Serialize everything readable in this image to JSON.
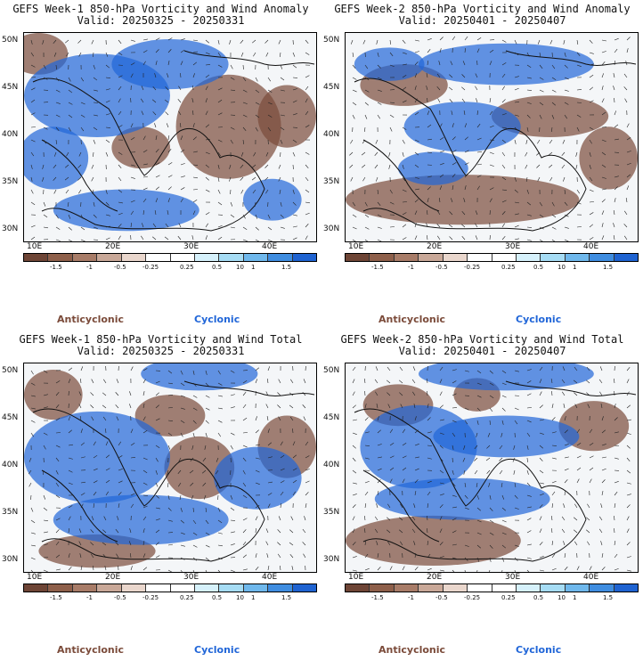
{
  "panels": [
    {
      "line1": "GEFS Week-1 850-hPa Vorticity and Wind Anomaly",
      "line2": "Valid: 20250325 - 20250331"
    },
    {
      "line1": "GEFS Week-2 850-hPa Vorticity and Wind Anomaly",
      "line2": "Valid: 20250401 - 20250407"
    },
    {
      "line1": "GEFS Week-1 850-hPa Vorticity and Wind Total",
      "line2": "Valid: 20250325 - 20250331"
    },
    {
      "line1": "GEFS Week-2 850-hPa Vorticity and Wind Total",
      "line2": "Valid: 20250401 - 20250407"
    }
  ],
  "lat_labels": [
    "50N",
    "45N",
    "40N",
    "35N",
    "30N"
  ],
  "lon_labels": [
    "10E",
    "20E",
    "30E",
    "40E"
  ],
  "colorbar": {
    "labels": [
      "-1.5",
      "-1",
      "-0.5",
      "-0.25",
      "0.25",
      "0.5",
      "1",
      "1.5"
    ],
    "scale_label": "10",
    "colors": [
      "#6e4536",
      "#8e5f4a",
      "#a87c68",
      "#c9a898",
      "#ead7cd",
      "#ffffff",
      "#ffffff",
      "#d6f1fb",
      "#a6dcf4",
      "#6fb8ec",
      "#3f8de0",
      "#1f63d1"
    ]
  },
  "legend": {
    "anticyclonic": "Anticyclonic",
    "cyclonic": "Cyclonic"
  },
  "colors": {
    "anticyclonic": "#7b4b3a",
    "cyclonic": "#2166d8"
  }
}
